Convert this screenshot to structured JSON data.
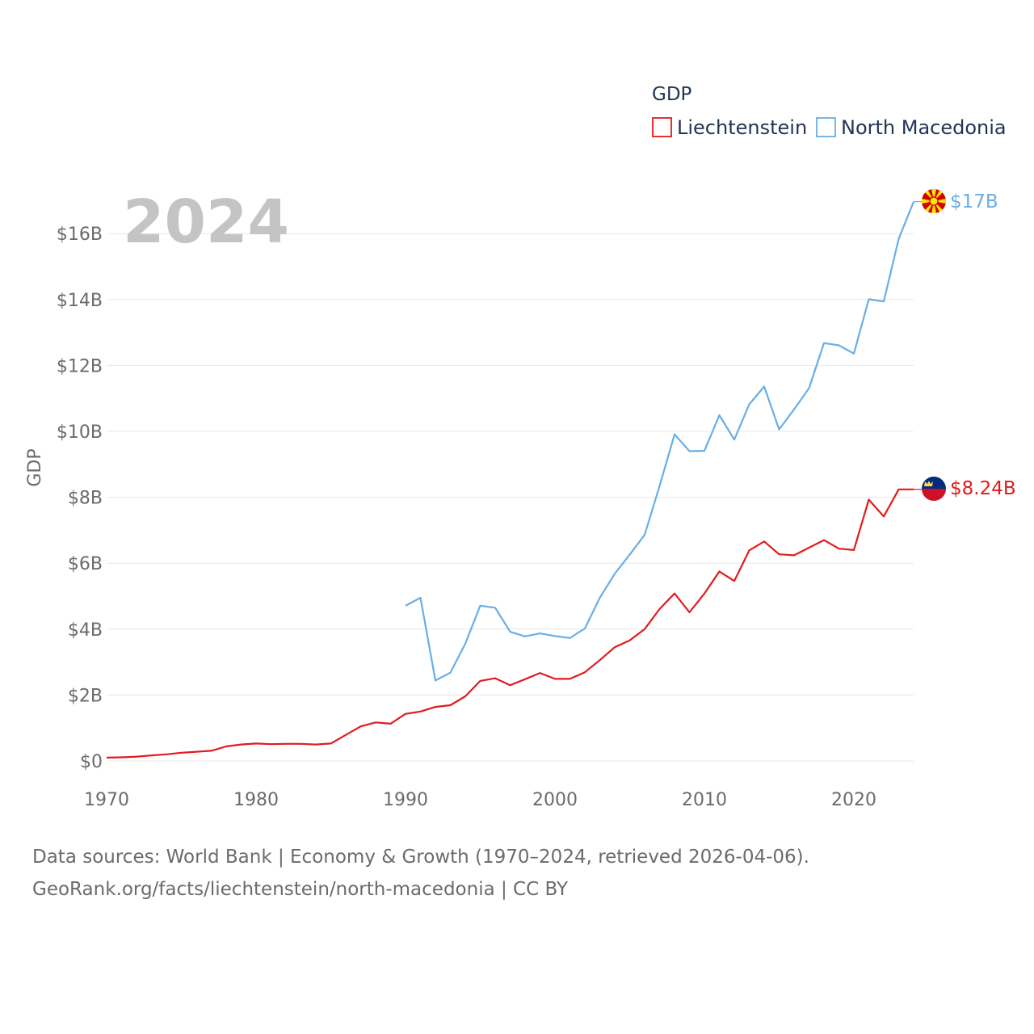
{
  "chart_data": {
    "type": "line",
    "year_label": "2024",
    "ylabel": "GDP",
    "ylim": [
      0,
      17
    ],
    "xlim": [
      1970,
      2024
    ],
    "y_ticks": [
      {
        "value": 0,
        "label": "$0"
      },
      {
        "value": 2,
        "label": "$2B"
      },
      {
        "value": 4,
        "label": "$4B"
      },
      {
        "value": 6,
        "label": "$6B"
      },
      {
        "value": 8,
        "label": "$8B"
      },
      {
        "value": 10,
        "label": "$10B"
      },
      {
        "value": 12,
        "label": "$12B"
      },
      {
        "value": 14,
        "label": "$14B"
      },
      {
        "value": 16,
        "label": "$16B"
      }
    ],
    "x_ticks": [
      {
        "value": 1970,
        "label": "1970"
      },
      {
        "value": 1980,
        "label": "1980"
      },
      {
        "value": 1990,
        "label": "1990"
      },
      {
        "value": 2000,
        "label": "2000"
      },
      {
        "value": 2010,
        "label": "2010"
      },
      {
        "value": 2020,
        "label": "2020"
      }
    ],
    "legend": {
      "title": "GDP",
      "position": "top-right"
    },
    "series": [
      {
        "name": "Liechtenstein",
        "color": "#e31a1c",
        "end_label": "$8.24B",
        "x": [
          1970,
          1971,
          1972,
          1973,
          1974,
          1975,
          1976,
          1977,
          1978,
          1979,
          1980,
          1981,
          1982,
          1983,
          1984,
          1985,
          1986,
          1987,
          1988,
          1989,
          1990,
          1991,
          1992,
          1993,
          1994,
          1995,
          1996,
          1997,
          1998,
          1999,
          2000,
          2001,
          2002,
          2003,
          2004,
          2005,
          2006,
          2007,
          2008,
          2009,
          2010,
          2011,
          2012,
          2013,
          2014,
          2015,
          2016,
          2017,
          2018,
          2019,
          2020,
          2021,
          2022,
          2023,
          2024
        ],
        "values": [
          0.1,
          0.11,
          0.13,
          0.17,
          0.2,
          0.25,
          0.28,
          0.31,
          0.44,
          0.5,
          0.53,
          0.51,
          0.52,
          0.52,
          0.5,
          0.53,
          0.79,
          1.05,
          1.17,
          1.13,
          1.43,
          1.5,
          1.64,
          1.69,
          1.96,
          2.43,
          2.51,
          2.3,
          2.48,
          2.67,
          2.49,
          2.49,
          2.69,
          3.06,
          3.45,
          3.66,
          4.0,
          4.61,
          5.08,
          4.51,
          5.08,
          5.75,
          5.46,
          6.39,
          6.66,
          6.27,
          6.24,
          6.47,
          6.7,
          6.44,
          6.4,
          7.93,
          7.42,
          8.24,
          8.24
        ]
      },
      {
        "name": "North Macedonia",
        "color": "#6aaee3",
        "end_label": "$17B",
        "x": [
          1990,
          1991,
          1992,
          1993,
          1994,
          1995,
          1996,
          1997,
          1998,
          1999,
          2000,
          2001,
          2002,
          2003,
          2004,
          2005,
          2006,
          2007,
          2008,
          2009,
          2010,
          2011,
          2012,
          2013,
          2014,
          2015,
          2016,
          2017,
          2018,
          2019,
          2020,
          2021,
          2022,
          2023,
          2024
        ],
        "values": [
          4.71,
          4.95,
          2.44,
          2.68,
          3.56,
          4.71,
          4.65,
          3.92,
          3.78,
          3.87,
          3.79,
          3.73,
          4.02,
          4.95,
          5.68,
          6.26,
          6.86,
          8.34,
          9.91,
          9.4,
          9.41,
          10.49,
          9.75,
          10.82,
          11.36,
          10.06,
          10.67,
          11.31,
          12.68,
          12.61,
          12.36,
          14.01,
          13.94,
          15.84,
          16.97
        ]
      }
    ]
  },
  "source": {
    "line1": "Data sources: World Bank | Economy & Growth (1970–2024, retrieved 2026-04-06).",
    "line2": "GeoRank.org/facts/liechtenstein/north-macedonia | CC BY"
  }
}
